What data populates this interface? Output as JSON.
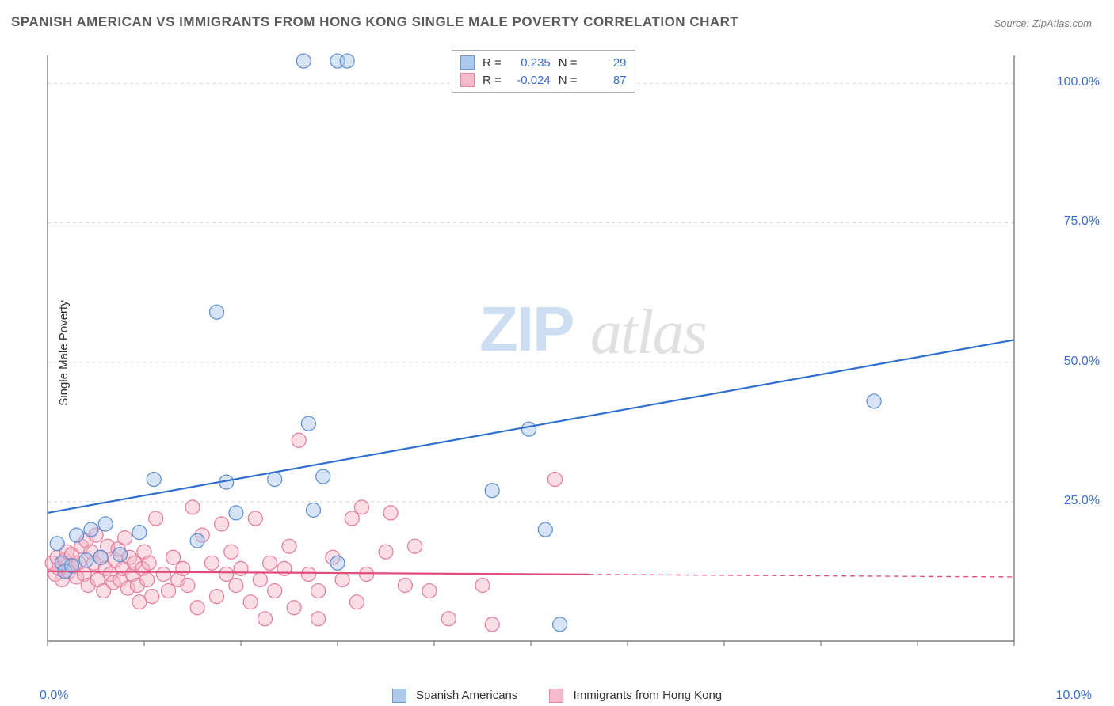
{
  "title": "SPANISH AMERICAN VS IMMIGRANTS FROM HONG KONG SINGLE MALE POVERTY CORRELATION CHART",
  "source": "Source: ZipAtlas.com",
  "ylabel": "Single Male Poverty",
  "watermark_zip": "ZIP",
  "watermark_atlas": "atlas",
  "chart": {
    "type": "scatter",
    "xlim": [
      0,
      10
    ],
    "ylim": [
      0,
      105
    ],
    "background_color": "#ffffff",
    "grid_color": "#d8d8d8",
    "grid_dash": "4,4",
    "axis_color": "#666666",
    "label_color": "#3b6fd4",
    "yticks": [
      25,
      50,
      75,
      100
    ],
    "ytick_labels": [
      "25.0%",
      "50.0%",
      "75.0%",
      "100.0%"
    ],
    "xticks": [
      0,
      1,
      2,
      3,
      4,
      5,
      6,
      7,
      8,
      9,
      10
    ],
    "xlim_labels": {
      "left": "0.0%",
      "right": "10.0%"
    },
    "marker_radius": 9,
    "marker_stroke_width": 1.2,
    "trendline_width": 2.2,
    "trendline_dash_after_data": "6,5",
    "series": [
      {
        "name": "Spanish Americans",
        "fill": "#a7c4e8",
        "stroke": "#5a8bd0",
        "fill_opacity": 0.45,
        "R": "0.235",
        "N": "29",
        "trend": {
          "y0": 23,
          "y1": 54,
          "color": "#2f6fd0",
          "solid_x_end": 10
        },
        "points": [
          [
            0.1,
            17.5
          ],
          [
            0.15,
            14
          ],
          [
            0.18,
            12.5
          ],
          [
            0.25,
            13.5
          ],
          [
            0.3,
            19
          ],
          [
            0.45,
            20
          ],
          [
            0.55,
            15
          ],
          [
            0.6,
            21
          ],
          [
            0.75,
            15.5
          ],
          [
            0.95,
            19.5
          ],
          [
            1.1,
            29
          ],
          [
            1.55,
            18
          ],
          [
            1.75,
            59
          ],
          [
            1.85,
            28.5
          ],
          [
            1.95,
            23
          ],
          [
            2.35,
            29
          ],
          [
            2.65,
            104
          ],
          [
            2.7,
            39
          ],
          [
            2.75,
            23.5
          ],
          [
            3.0,
            104
          ],
          [
            3.1,
            104
          ],
          [
            2.85,
            29.5
          ],
          [
            3.0,
            14
          ],
          [
            4.6,
            27
          ],
          [
            4.98,
            38
          ],
          [
            5.15,
            20
          ],
          [
            5.3,
            3
          ],
          [
            8.55,
            43
          ],
          [
            0.4,
            14.5
          ]
        ]
      },
      {
        "name": "Immigrants from Hong Kong",
        "fill": "#f4b4c6",
        "stroke": "#e47a9a",
        "fill_opacity": 0.45,
        "R": "-0.024",
        "N": "87",
        "trend": {
          "y0": 12.5,
          "y1": 11.5,
          "color": "#e04d7a",
          "solid_x_end": 5.6
        },
        "points": [
          [
            0.05,
            14
          ],
          [
            0.08,
            12
          ],
          [
            0.1,
            15
          ],
          [
            0.12,
            13
          ],
          [
            0.15,
            11
          ],
          [
            0.18,
            14.5
          ],
          [
            0.2,
            16
          ],
          [
            0.22,
            12.5
          ],
          [
            0.25,
            15.5
          ],
          [
            0.28,
            13.5
          ],
          [
            0.3,
            11.5
          ],
          [
            0.32,
            14
          ],
          [
            0.35,
            17
          ],
          [
            0.38,
            12
          ],
          [
            0.4,
            18
          ],
          [
            0.42,
            10
          ],
          [
            0.45,
            16
          ],
          [
            0.48,
            14
          ],
          [
            0.5,
            19
          ],
          [
            0.52,
            11
          ],
          [
            0.55,
            15
          ],
          [
            0.58,
            9
          ],
          [
            0.6,
            13
          ],
          [
            0.62,
            17
          ],
          [
            0.65,
            12
          ],
          [
            0.68,
            10.5
          ],
          [
            0.7,
            14.5
          ],
          [
            0.73,
            16.5
          ],
          [
            0.75,
            11
          ],
          [
            0.78,
            13
          ],
          [
            0.8,
            18.5
          ],
          [
            0.83,
            9.5
          ],
          [
            0.85,
            15
          ],
          [
            0.88,
            12
          ],
          [
            0.9,
            14
          ],
          [
            0.93,
            10
          ],
          [
            0.95,
            7
          ],
          [
            0.98,
            13
          ],
          [
            1.0,
            16
          ],
          [
            1.03,
            11
          ],
          [
            1.05,
            14
          ],
          [
            1.08,
            8
          ],
          [
            1.12,
            22
          ],
          [
            1.2,
            12
          ],
          [
            1.25,
            9
          ],
          [
            1.3,
            15
          ],
          [
            1.35,
            11
          ],
          [
            1.4,
            13
          ],
          [
            1.45,
            10
          ],
          [
            1.5,
            24
          ],
          [
            1.55,
            6
          ],
          [
            1.6,
            19
          ],
          [
            1.7,
            14
          ],
          [
            1.75,
            8
          ],
          [
            1.8,
            21
          ],
          [
            1.85,
            12
          ],
          [
            1.9,
            16
          ],
          [
            1.95,
            10
          ],
          [
            2.0,
            13
          ],
          [
            2.1,
            7
          ],
          [
            2.15,
            22
          ],
          [
            2.2,
            11
          ],
          [
            2.25,
            4
          ],
          [
            2.3,
            14
          ],
          [
            2.35,
            9
          ],
          [
            2.45,
            13
          ],
          [
            2.5,
            17
          ],
          [
            2.55,
            6
          ],
          [
            2.6,
            36
          ],
          [
            2.7,
            12
          ],
          [
            2.8,
            9
          ],
          [
            2.8,
            4
          ],
          [
            2.95,
            15
          ],
          [
            3.05,
            11
          ],
          [
            3.15,
            22
          ],
          [
            3.2,
            7
          ],
          [
            3.25,
            24
          ],
          [
            3.3,
            12
          ],
          [
            3.5,
            16
          ],
          [
            3.55,
            23
          ],
          [
            3.7,
            10
          ],
          [
            3.8,
            17
          ],
          [
            3.95,
            9
          ],
          [
            4.15,
            4
          ],
          [
            4.5,
            10
          ],
          [
            4.6,
            3
          ],
          [
            5.25,
            29
          ]
        ]
      }
    ]
  },
  "stat_legend": {
    "r_label": "R =",
    "n_label": "N ="
  },
  "bottom_legend": {
    "series1": "Spanish Americans",
    "series2": "Immigrants from Hong Kong"
  }
}
